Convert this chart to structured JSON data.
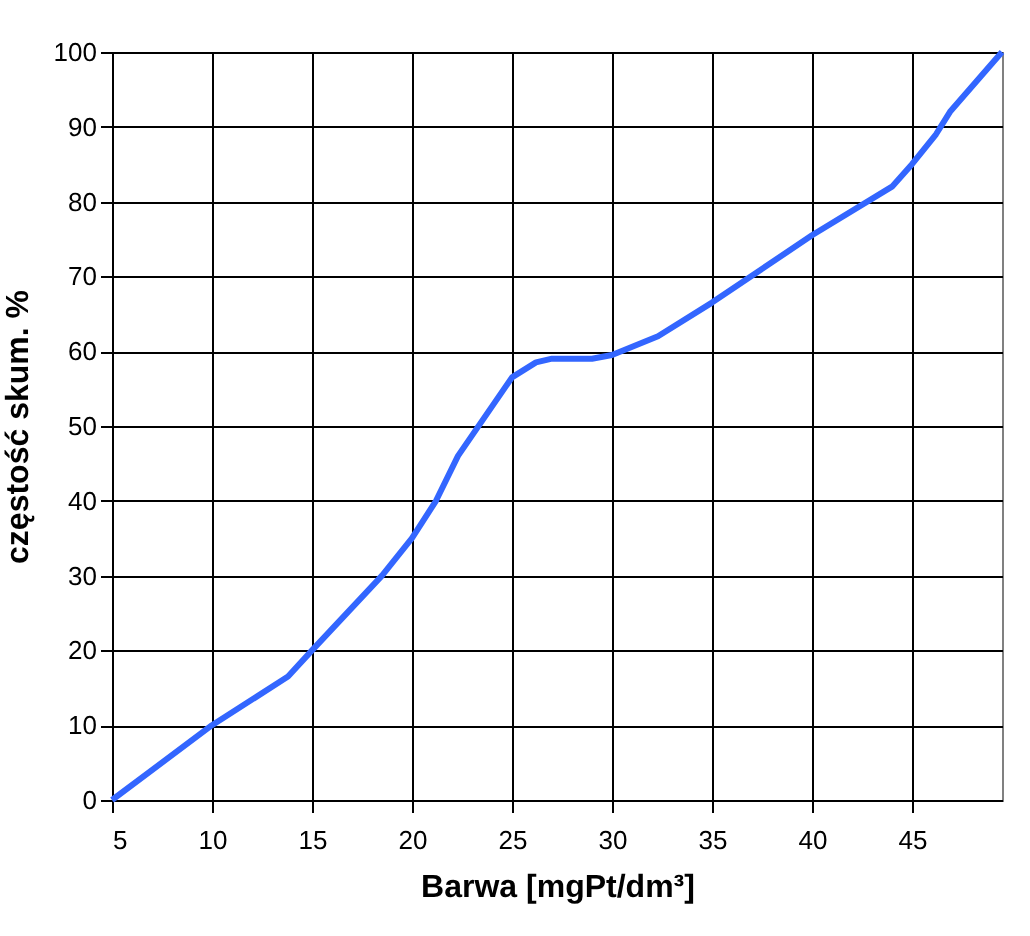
{
  "chart_data": {
    "type": "line",
    "xlabel": "Barwa [mgPt/dm³]",
    "ylabel": "częstość skum. %",
    "x": [
      5,
      10,
      13.8,
      15,
      18.5,
      20,
      21.2,
      22.3,
      25,
      26.2,
      27,
      29,
      30,
      32.3,
      35,
      40,
      44,
      45,
      46.2,
      46.9,
      49.5
    ],
    "series": [
      {
        "color": "#3366ff",
        "values": [
          0,
          10,
          16.5,
          20,
          30,
          35,
          40,
          46,
          56.5,
          58.5,
          59,
          59,
          59.5,
          62,
          66.5,
          75.5,
          82,
          85,
          89,
          92,
          100
        ]
      }
    ],
    "xlim": [
      5,
      49.5
    ],
    "xticks": [
      5,
      10,
      15,
      20,
      25,
      30,
      35,
      40,
      45
    ],
    "ylim": [
      0,
      100
    ],
    "yticks": [
      0,
      10,
      20,
      30,
      40,
      50,
      60,
      70,
      80,
      90,
      100
    ],
    "grid": true,
    "marker": "none",
    "line_style": "solid"
  }
}
